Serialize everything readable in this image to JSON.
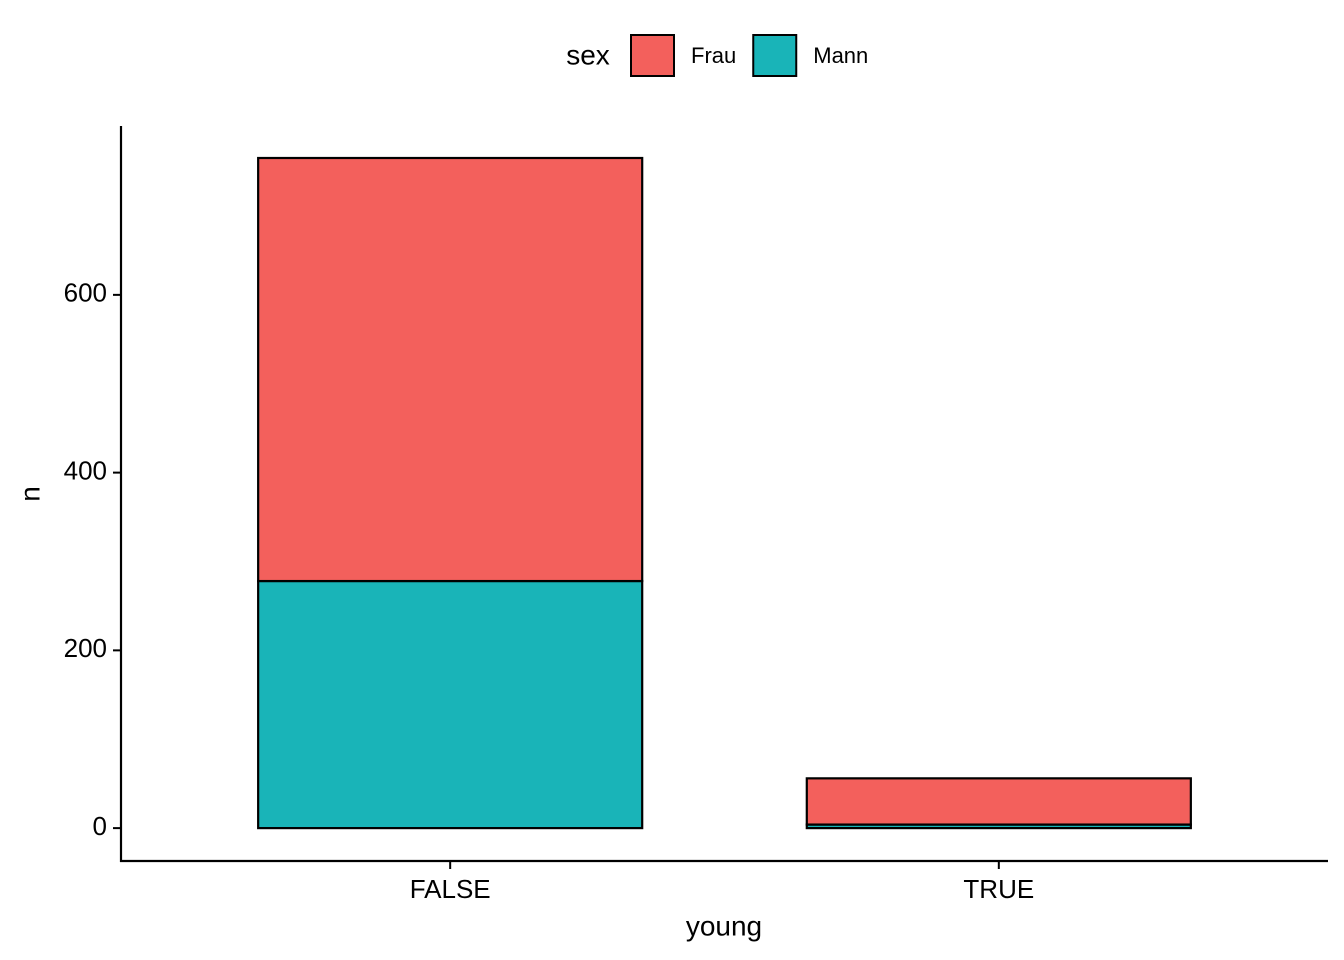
{
  "chart_data": {
    "type": "stacked_bar",
    "x_label": "young",
    "y_label": "n",
    "categories": [
      "FALSE",
      "TRUE"
    ],
    "legend_title": "sex",
    "legend_position": "top",
    "series": [
      {
        "name": "Frau",
        "color": "#f3605c",
        "values": [
          476,
          52
        ]
      },
      {
        "name": "Mann",
        "color": "#19b4b8",
        "values": [
          278,
          4
        ]
      }
    ],
    "ylim": [
      -37,
      790
    ],
    "yticks": [
      0,
      200,
      400,
      600
    ],
    "grid": false
  }
}
